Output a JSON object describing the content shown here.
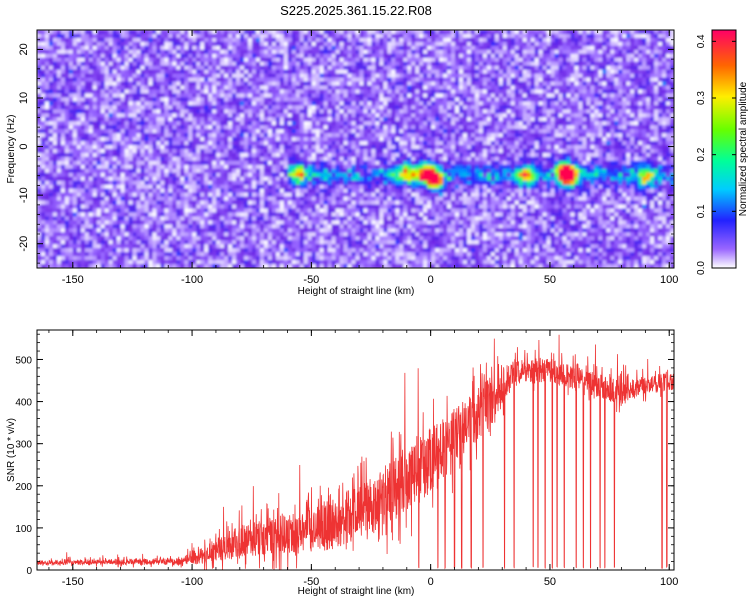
{
  "title": "S225.2025.361.15.22.R08",
  "chart_data": [
    {
      "type": "heatmap",
      "xlabel": "Height of straight line (km)",
      "ylabel": "Frequency (Hz)",
      "xlim": [
        -165,
        102
      ],
      "ylim": [
        -25,
        24
      ],
      "x_ticks": [
        -150,
        -100,
        -50,
        0,
        50,
        100
      ],
      "y_ticks": [
        -20,
        -10,
        0,
        10,
        20
      ],
      "colorbar": {
        "label": "Normalized spectral amplitude",
        "range": [
          0.0,
          0.42
        ],
        "ticks": [
          0.0,
          0.1,
          0.2,
          0.3,
          0.4
        ],
        "tick_labels": [
          "0.0",
          "0.1",
          "0.2",
          "0.3",
          "0.4"
        ]
      },
      "signal_band": {
        "frequency_hz": -6,
        "x_range": [
          -60,
          102
        ]
      },
      "hotspots": [
        {
          "x": -2,
          "y": -5.5,
          "value": 0.33
        },
        {
          "x": 2,
          "y": -7,
          "value": 0.3
        },
        {
          "x": 58,
          "y": -6,
          "value": 0.36
        },
        {
          "x": 56,
          "y": -5,
          "value": 0.25
        },
        {
          "x": -10,
          "y": -5.5,
          "value": 0.22
        },
        {
          "x": -55,
          "y": -5.5,
          "value": 0.18
        },
        {
          "x": 40,
          "y": -6,
          "value": 0.2
        },
        {
          "x": 90,
          "y": -6.5,
          "value": 0.18
        }
      ]
    },
    {
      "type": "line",
      "xlabel": "Height of straight line (km)",
      "ylabel": "SNR (10 * v/v)",
      "xlim": [
        -165,
        102
      ],
      "ylim": [
        0,
        570
      ],
      "x_ticks": [
        -150,
        -100,
        -50,
        0,
        50,
        100
      ],
      "y_ticks": [
        0,
        100,
        200,
        300,
        400,
        500
      ],
      "color": "#ee3333",
      "envelope": [
        {
          "x": -165,
          "base": 18,
          "spread": 10
        },
        {
          "x": -105,
          "base": 20,
          "spread": 15
        },
        {
          "x": -95,
          "base": 35,
          "spread": 40
        },
        {
          "x": -80,
          "base": 70,
          "spread": 70
        },
        {
          "x": -60,
          "base": 85,
          "spread": 90
        },
        {
          "x": -40,
          "base": 110,
          "spread": 110
        },
        {
          "x": -20,
          "base": 170,
          "spread": 140
        },
        {
          "x": -5,
          "base": 240,
          "spread": 150
        },
        {
          "x": 5,
          "base": 280,
          "spread": 140
        },
        {
          "x": 15,
          "base": 340,
          "spread": 130
        },
        {
          "x": 25,
          "base": 400,
          "spread": 110
        },
        {
          "x": 35,
          "base": 470,
          "spread": 60
        },
        {
          "x": 50,
          "base": 475,
          "spread": 50
        },
        {
          "x": 65,
          "base": 450,
          "spread": 60
        },
        {
          "x": 80,
          "base": 420,
          "spread": 50
        },
        {
          "x": 90,
          "base": 440,
          "spread": 40
        },
        {
          "x": 102,
          "base": 450,
          "spread": 40
        }
      ],
      "dropouts": [
        -5,
        3,
        6,
        10,
        13,
        17,
        22,
        31,
        35,
        43,
        45,
        48,
        51,
        53,
        56,
        61,
        64,
        67,
        71,
        73,
        77,
        97,
        99
      ]
    }
  ]
}
